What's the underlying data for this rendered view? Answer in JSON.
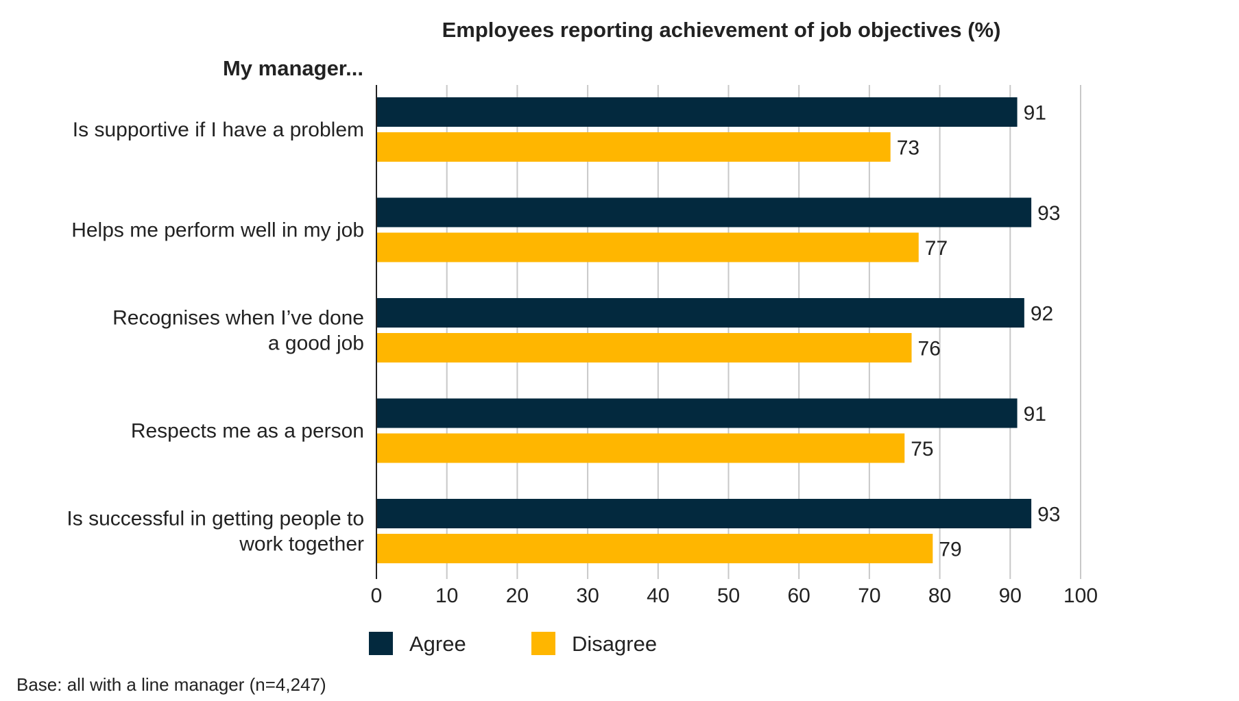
{
  "chart_data": {
    "type": "bar",
    "orientation": "horizontal",
    "title": "Employees reporting achievement of job objectives (%)",
    "category_heading": "My manager...",
    "categories": [
      [
        "Is supportive if I have a problem"
      ],
      [
        "Helps me perform well in my job"
      ],
      [
        "Recognises when I’ve done",
        "a good job"
      ],
      [
        "Respects me as a person"
      ],
      [
        "Is successful in getting people to",
        "work together"
      ]
    ],
    "series": [
      {
        "name": "Agree",
        "color": "#03293e",
        "values": [
          91,
          93,
          92,
          91,
          93
        ]
      },
      {
        "name": "Disagree",
        "color": "#ffb600",
        "values": [
          73,
          77,
          76,
          75,
          79
        ]
      }
    ],
    "xlim": [
      0,
      100
    ],
    "xticks": [
      0,
      10,
      20,
      30,
      40,
      50,
      60,
      70,
      80,
      90,
      100
    ],
    "grid": true,
    "legend": "bottom",
    "footnote": "Base: all with a line manager (n=4,247)"
  }
}
